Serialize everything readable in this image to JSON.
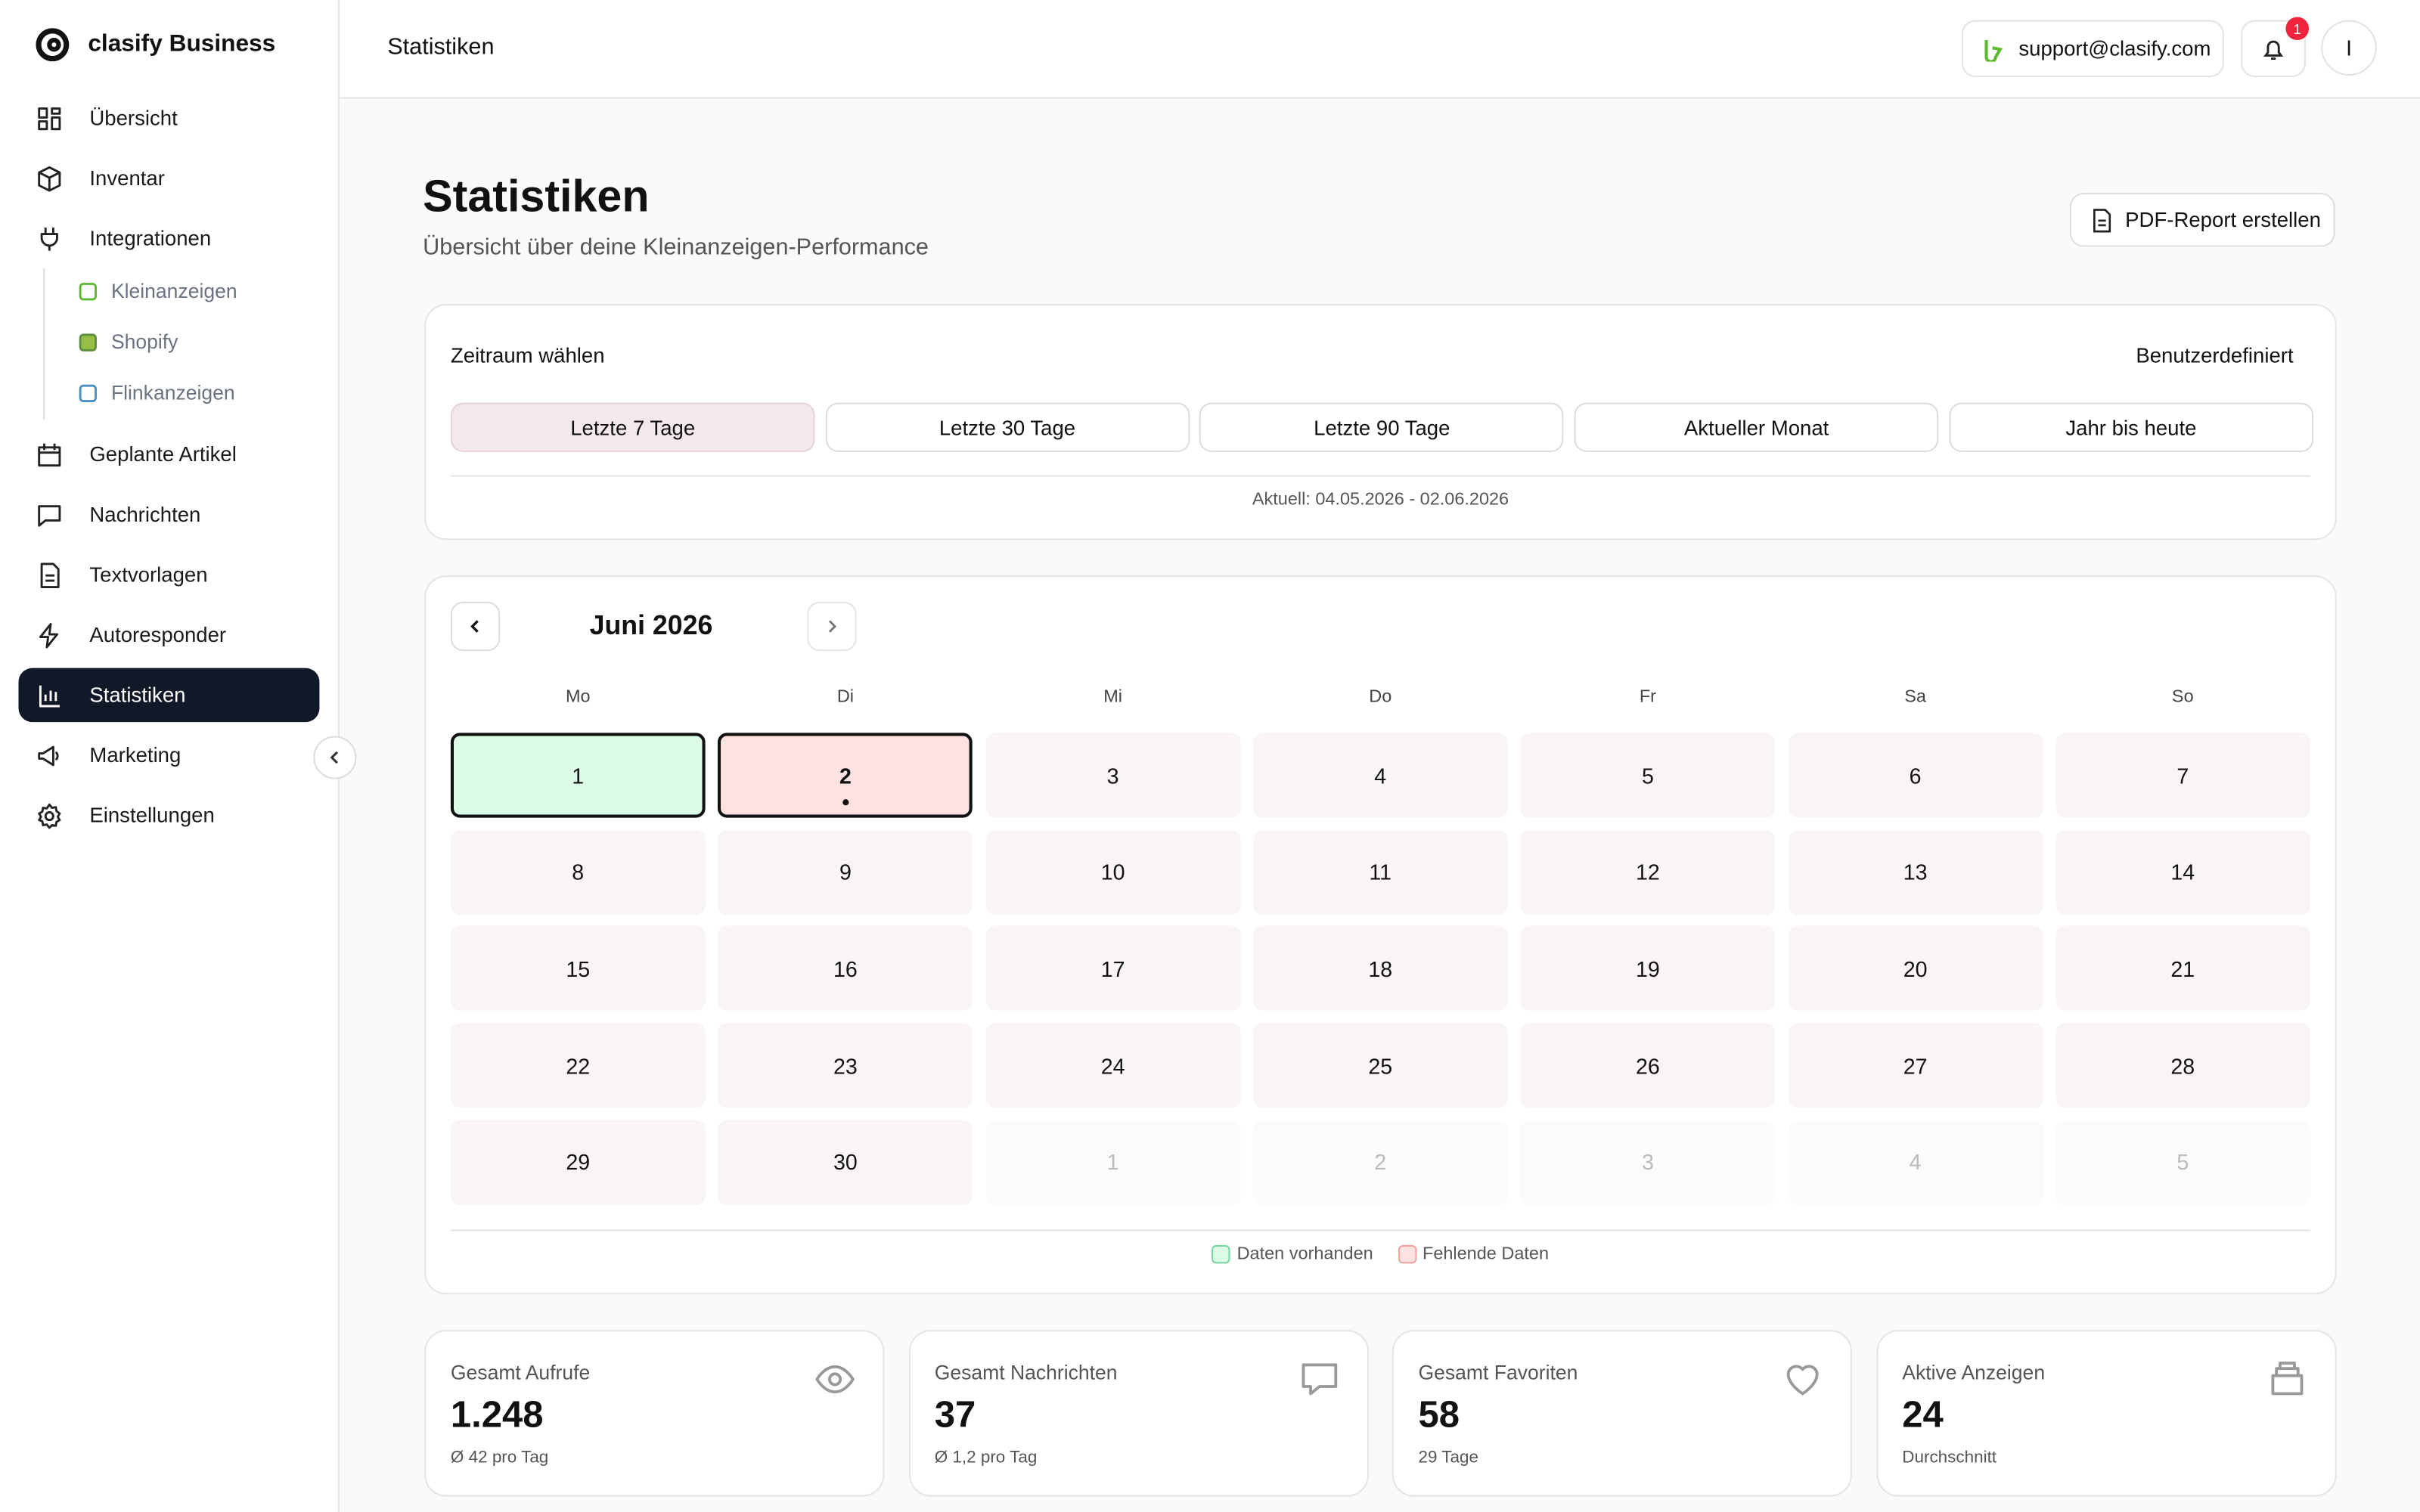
{
  "brand": "clasify Business",
  "nav": [
    {
      "label": "Übersicht"
    },
    {
      "label": "Inventar"
    },
    {
      "label": "Integrationen",
      "children": [
        "Kleinanzeigen",
        "Shopify",
        "Flinkanzeigen"
      ]
    },
    {
      "label": "Geplante Artikel"
    },
    {
      "label": "Nachrichten"
    },
    {
      "label": "Textvorlagen"
    },
    {
      "label": "Autoresponder"
    },
    {
      "label": "Statistiken"
    },
    {
      "label": "Marketing"
    },
    {
      "label": "Einstellungen"
    }
  ],
  "header": {
    "title": "Statistiken",
    "support": "support@clasify.com",
    "notifications": "1",
    "avatar": "I"
  },
  "page": {
    "title": "Statistiken",
    "subtitle": "Übersicht über deine Kleinanzeigen-Performance",
    "pdf_button": "PDF-Report erstellen"
  },
  "period": {
    "label": "Zeitraum wählen",
    "custom": "Benutzerdefiniert",
    "options": [
      "Letzte 7 Tage",
      "Letzte 30 Tage",
      "Letzte 90 Tage",
      "Aktueller Monat",
      "Jahr bis heute"
    ],
    "current": "Aktuell: 04.05.2026 - 02.06.2026"
  },
  "calendar": {
    "month": "Juni 2026",
    "weekdays": [
      "Mo",
      "Di",
      "Mi",
      "Do",
      "Fr",
      "Sa",
      "So"
    ],
    "days": [
      "1",
      "2",
      "3",
      "4",
      "5",
      "6",
      "7",
      "8",
      "9",
      "10",
      "11",
      "12",
      "13",
      "14",
      "15",
      "16",
      "17",
      "18",
      "19",
      "20",
      "21",
      "22",
      "23",
      "24",
      "25",
      "26",
      "27",
      "28",
      "29",
      "30"
    ],
    "trailing_days": [
      "1",
      "2",
      "3",
      "4",
      "5"
    ],
    "legend": [
      "Daten vorhanden",
      "Fehlende Daten"
    ]
  },
  "stats": [
    {
      "label": "Gesamt Aufrufe",
      "value": "1.248",
      "note": "Ø 42 pro Tag"
    },
    {
      "label": "Gesamt Nachrichten",
      "value": "37",
      "note": "Ø 1,2 pro Tag"
    },
    {
      "label": "Gesamt Favoriten",
      "value": "58",
      "note": "29 Tage"
    },
    {
      "label": "Aktive Anzeigen",
      "value": "24",
      "note": "Durchschnitt"
    }
  ]
}
